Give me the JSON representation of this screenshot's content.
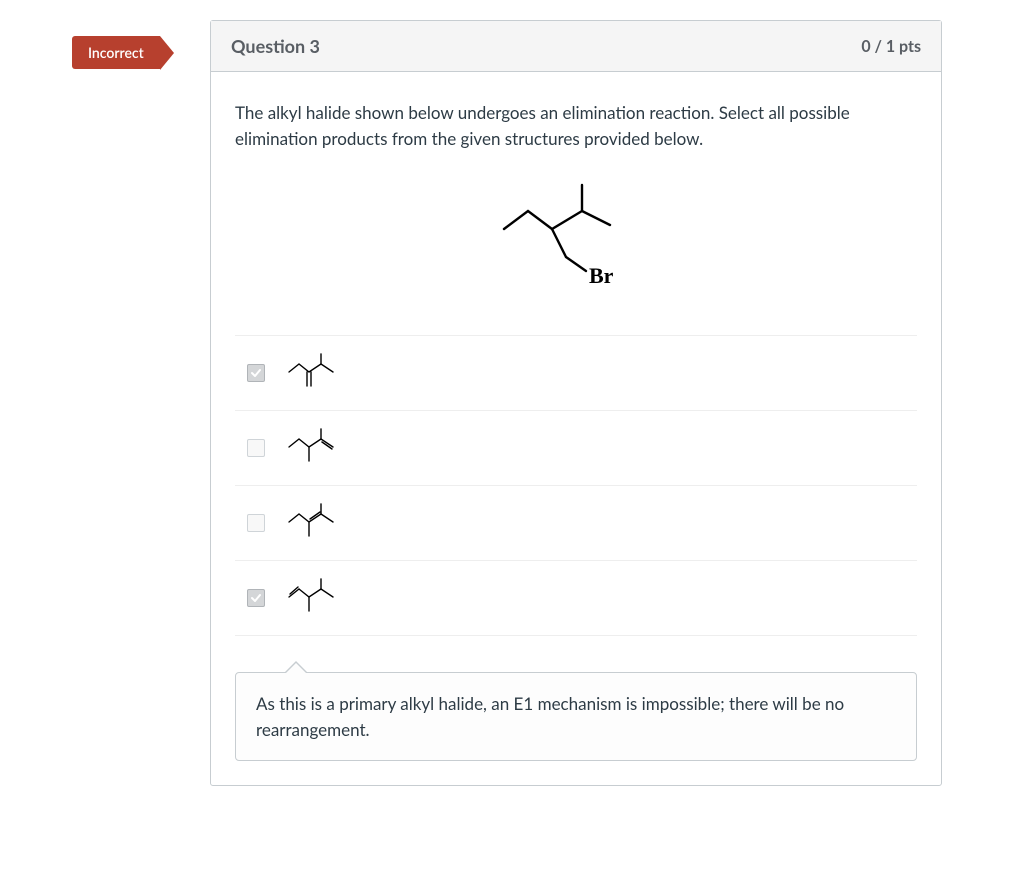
{
  "flag": {
    "label": "Incorrect",
    "bg_color": "#b7402e",
    "text_color": "#ffffff"
  },
  "header": {
    "title": "Question 3",
    "points": "0 / 1 pts"
  },
  "question": {
    "prompt": "The alkyl halide shown below undergoes an elimination reaction.  Select all possible elimination products from the given structures provided below.",
    "main_structure": {
      "type": "chemical-structure",
      "label": "Br",
      "label_font": "bold 22px serif",
      "stroke_color": "#000000",
      "stroke_width": 2.4,
      "width": 180,
      "height": 130
    }
  },
  "answers": [
    {
      "checked": true,
      "structure_variant": "A"
    },
    {
      "checked": false,
      "structure_variant": "B"
    },
    {
      "checked": false,
      "structure_variant": "C"
    },
    {
      "checked": true,
      "structure_variant": "D"
    }
  ],
  "feedback": {
    "text": "As this is a primary alkyl halide, an E1 mechanism is impossible; there will be no rearrangement.",
    "bg_color": "#fdfdfd",
    "border_color": "#c7cdd1"
  },
  "style": {
    "card_border": "#c7cdd1",
    "header_bg": "#f5f5f5",
    "text_color": "#2d3b45",
    "muted_text": "#595e64",
    "checkbox_checked_bg": "#d4d6d8",
    "small_mol": {
      "width": 56,
      "height": 42,
      "stroke_color": "#000000",
      "stroke_width": 1.4
    }
  }
}
